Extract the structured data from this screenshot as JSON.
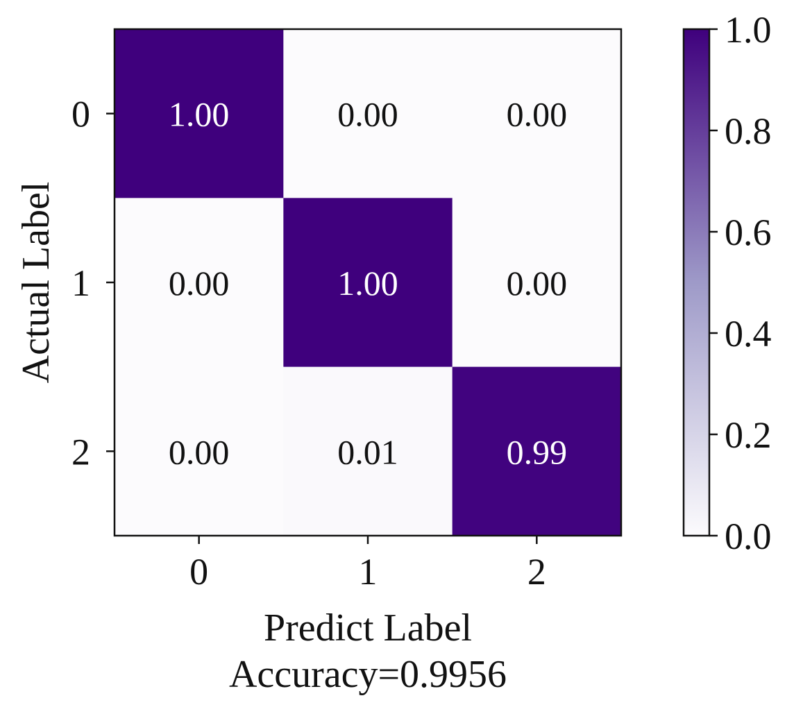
{
  "chart_data": {
    "type": "heatmap",
    "x_categories": [
      "0",
      "1",
      "2"
    ],
    "y_categories": [
      "0",
      "1",
      "2"
    ],
    "values": [
      [
        1.0,
        0.0,
        0.0
      ],
      [
        0.0,
        1.0,
        0.0
      ],
      [
        0.0,
        0.01,
        0.99
      ]
    ],
    "cell_labels": [
      [
        "1.00",
        "0.00",
        "0.00"
      ],
      [
        "0.00",
        "1.00",
        "0.00"
      ],
      [
        "0.00",
        "0.01",
        "0.99"
      ]
    ],
    "xlabel": "Predict Label",
    "xlabel_line2": "Accuracy=0.9956",
    "ylabel": "Actual Label",
    "colorbar": {
      "range": [
        0.0,
        1.0
      ],
      "ticks": [
        0.0,
        0.2,
        0.4,
        0.6,
        0.8,
        1.0
      ],
      "tick_labels": [
        "0.0",
        "0.2",
        "0.4",
        "0.6",
        "0.8",
        "1.0"
      ]
    },
    "colormap": {
      "low": "#fcfbfd",
      "mid": "#9e9ac8",
      "high": "#3f007d"
    },
    "text_colors": {
      "on_dark": "#ffffff",
      "on_light": "#111111"
    }
  }
}
